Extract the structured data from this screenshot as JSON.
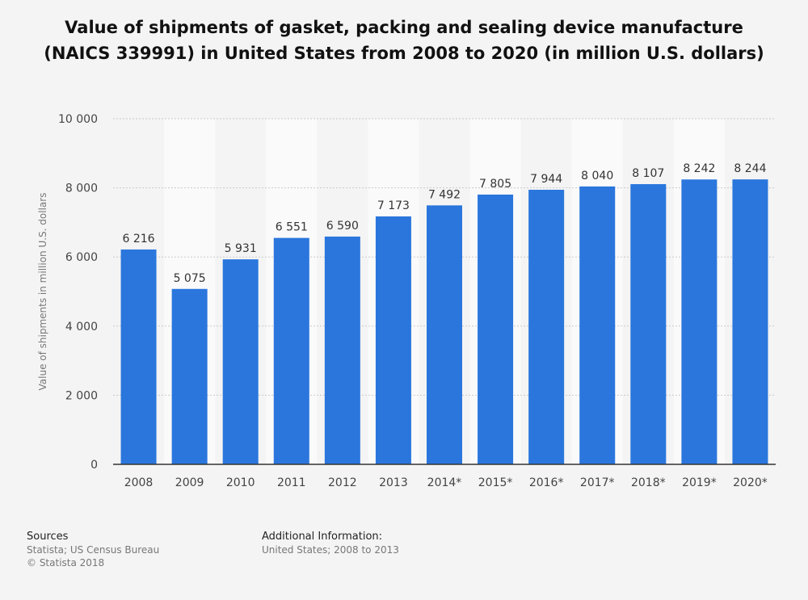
{
  "chart_data": {
    "type": "bar",
    "title": "Value of shipments of gasket, packing and sealing device manufacture (NAICS 339991) in United States from 2008 to 2020 (in million U.S. dollars)",
    "xlabel": "",
    "ylabel": "Value of shipments in million U.S. dollars",
    "ylim": [
      0,
      10000
    ],
    "yticks": [
      0,
      2000,
      4000,
      6000,
      8000,
      10000
    ],
    "ytick_labels": [
      "0",
      "2 000",
      "4 000",
      "6 000",
      "8 000",
      "10 000"
    ],
    "categories": [
      "2008",
      "2009",
      "2010",
      "2011",
      "2012",
      "2013",
      "2014*",
      "2015*",
      "2016*",
      "2017*",
      "2018*",
      "2019*",
      "2020*"
    ],
    "values": [
      6216,
      5075,
      5931,
      6551,
      6590,
      7173,
      7492,
      7805,
      7944,
      8040,
      8107,
      8242,
      8244
    ],
    "value_labels": [
      "6 216",
      "5 075",
      "5 931",
      "6 551",
      "6 590",
      "7 173",
      "7 492",
      "7 805",
      "7 944",
      "8 040",
      "8 107",
      "8 242",
      "8 244"
    ],
    "bar_color": "#2a76dd",
    "grid": true
  },
  "footer": {
    "sources_heading": "Sources",
    "sources_line1": "Statista; US Census Bureau",
    "sources_line2": "© Statista 2018",
    "info_heading": "Additional Information:",
    "info_line1": "United States; 2008 to 2013"
  }
}
